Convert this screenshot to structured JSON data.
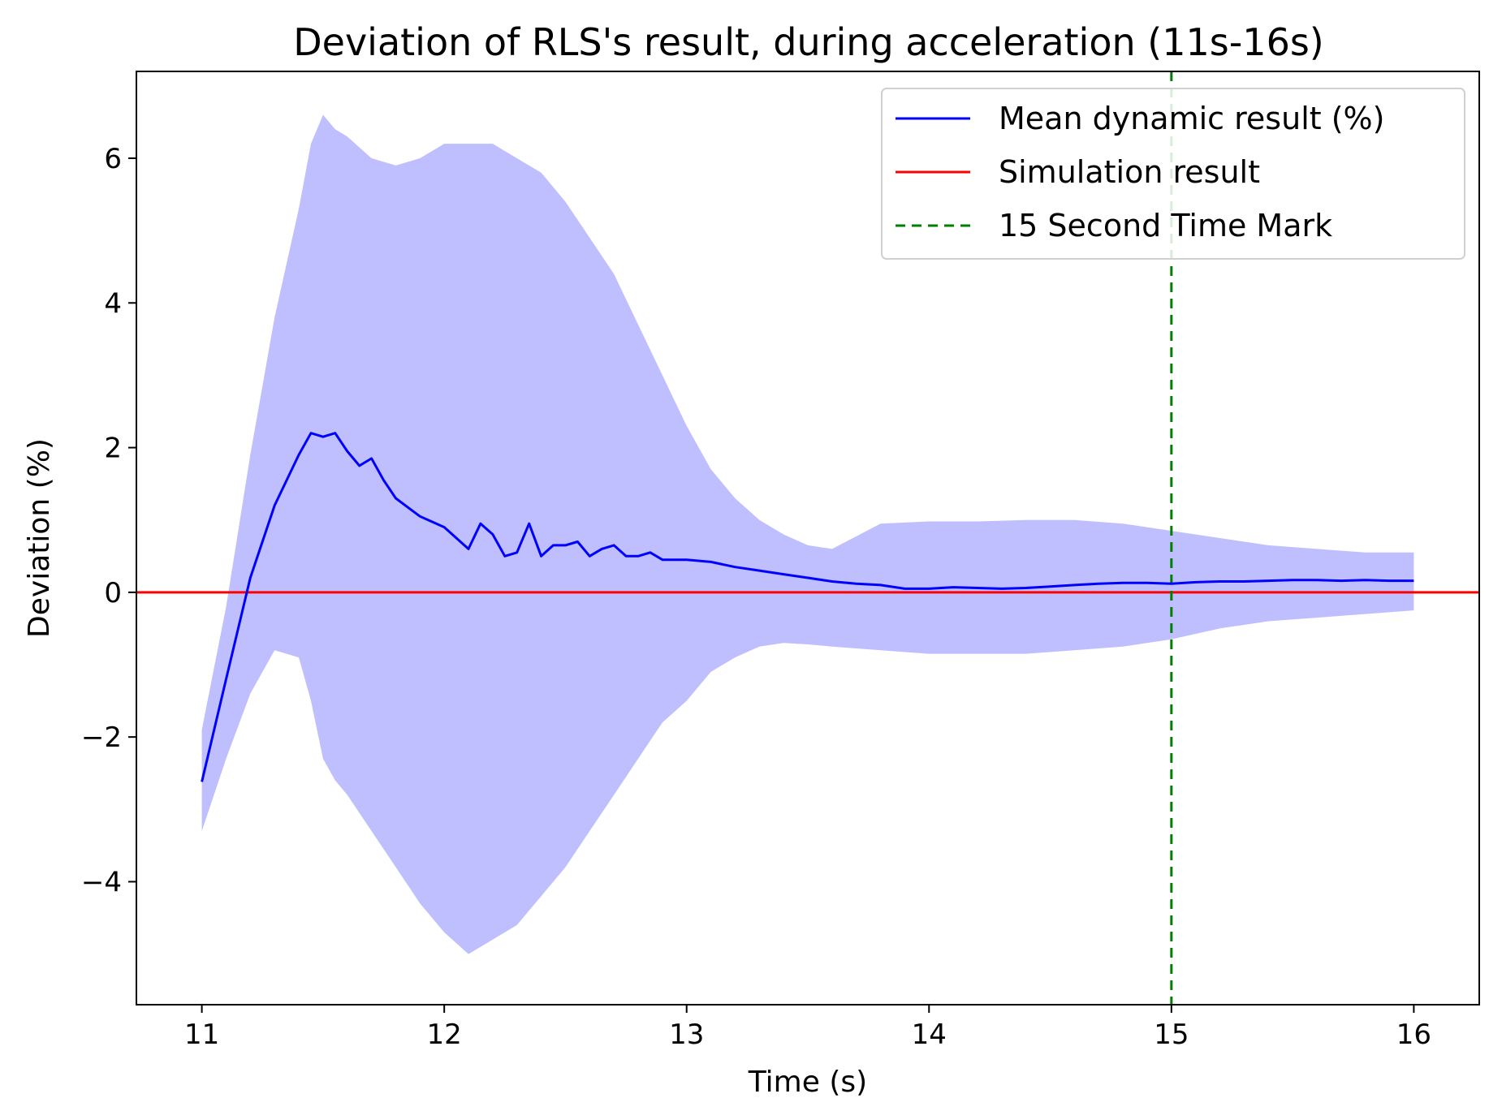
{
  "chart_data": {
    "type": "line",
    "title": "Deviation of RLS's result, during acceleration (11s-16s)",
    "xlabel": "Time (s)",
    "ylabel": "Deviation (%)",
    "xlim": [
      10.73,
      16.27
    ],
    "ylim": [
      -5.7,
      7.2
    ],
    "x_ticks": [
      11,
      12,
      13,
      14,
      15,
      16
    ],
    "x_tick_labels": [
      "11",
      "12",
      "13",
      "14",
      "15",
      "16"
    ],
    "y_ticks": [
      -4,
      -2,
      0,
      2,
      4,
      6
    ],
    "y_tick_labels": [
      "−4",
      "−2",
      "0",
      "2",
      "4",
      "6"
    ],
    "grid": false,
    "legend_position": "top-right",
    "series": [
      {
        "name": "Mean dynamic result (%)",
        "kind": "line",
        "color": "#0000ff",
        "x": [
          11.0,
          11.1,
          11.2,
          11.3,
          11.4,
          11.45,
          11.5,
          11.55,
          11.6,
          11.65,
          11.7,
          11.75,
          11.8,
          11.9,
          12.0,
          12.05,
          12.1,
          12.15,
          12.2,
          12.25,
          12.3,
          12.35,
          12.4,
          12.45,
          12.5,
          12.55,
          12.6,
          12.65,
          12.7,
          12.75,
          12.8,
          12.85,
          12.9,
          13.0,
          13.1,
          13.2,
          13.3,
          13.4,
          13.5,
          13.6,
          13.7,
          13.8,
          13.9,
          14.0,
          14.1,
          14.2,
          14.3,
          14.4,
          14.5,
          14.6,
          14.7,
          14.8,
          14.9,
          15.0,
          15.1,
          15.2,
          15.3,
          15.4,
          15.5,
          15.6,
          15.7,
          15.8,
          15.9,
          16.0
        ],
        "values": [
          -2.62,
          -1.2,
          0.2,
          1.2,
          1.9,
          2.2,
          2.15,
          2.2,
          1.95,
          1.75,
          1.85,
          1.55,
          1.3,
          1.05,
          0.9,
          0.75,
          0.6,
          0.95,
          0.8,
          0.5,
          0.55,
          0.95,
          0.5,
          0.65,
          0.65,
          0.7,
          0.5,
          0.6,
          0.65,
          0.5,
          0.5,
          0.55,
          0.45,
          0.45,
          0.42,
          0.35,
          0.3,
          0.25,
          0.2,
          0.15,
          0.12,
          0.1,
          0.05,
          0.05,
          0.07,
          0.06,
          0.05,
          0.06,
          0.08,
          0.1,
          0.12,
          0.13,
          0.13,
          0.12,
          0.14,
          0.15,
          0.15,
          0.16,
          0.17,
          0.17,
          0.16,
          0.17,
          0.16,
          0.16
        ]
      },
      {
        "name": "Simulation result",
        "kind": "hline",
        "color": "#ff0000",
        "y": 0
      },
      {
        "name": "15 Second Time Mark",
        "kind": "vline",
        "color": "#008000",
        "dashed": true,
        "x": 15
      },
      {
        "name": "spread",
        "kind": "band",
        "color": "#bfbfff",
        "x": [
          11.0,
          11.1,
          11.2,
          11.3,
          11.4,
          11.45,
          11.5,
          11.55,
          11.6,
          11.7,
          11.8,
          11.9,
          12.0,
          12.1,
          12.2,
          12.3,
          12.4,
          12.5,
          12.6,
          12.7,
          12.8,
          12.9,
          13.0,
          13.1,
          13.2,
          13.3,
          13.4,
          13.5,
          13.6,
          13.8,
          14.0,
          14.2,
          14.4,
          14.6,
          14.8,
          15.0,
          15.2,
          15.4,
          15.6,
          15.8,
          16.0
        ],
        "upper": [
          -1.9,
          -0.2,
          1.9,
          3.8,
          5.3,
          6.2,
          6.6,
          6.4,
          6.3,
          6.0,
          5.9,
          6.0,
          6.2,
          6.2,
          6.2,
          6.0,
          5.8,
          5.4,
          4.9,
          4.4,
          3.7,
          3.0,
          2.3,
          1.7,
          1.3,
          1.0,
          0.8,
          0.65,
          0.6,
          0.95,
          0.98,
          0.98,
          1.0,
          1.0,
          0.95,
          0.85,
          0.75,
          0.65,
          0.6,
          0.55,
          0.55
        ],
        "lower": [
          -3.3,
          -2.3,
          -1.4,
          -0.8,
          -0.9,
          -1.5,
          -2.3,
          -2.6,
          -2.8,
          -3.3,
          -3.8,
          -4.3,
          -4.7,
          -5.0,
          -4.8,
          -4.6,
          -4.2,
          -3.8,
          -3.3,
          -2.8,
          -2.3,
          -1.8,
          -1.5,
          -1.1,
          -0.9,
          -0.75,
          -0.7,
          -0.72,
          -0.75,
          -0.8,
          -0.85,
          -0.85,
          -0.85,
          -0.8,
          -0.75,
          -0.65,
          -0.5,
          -0.4,
          -0.35,
          -0.3,
          -0.25
        ]
      }
    ]
  }
}
